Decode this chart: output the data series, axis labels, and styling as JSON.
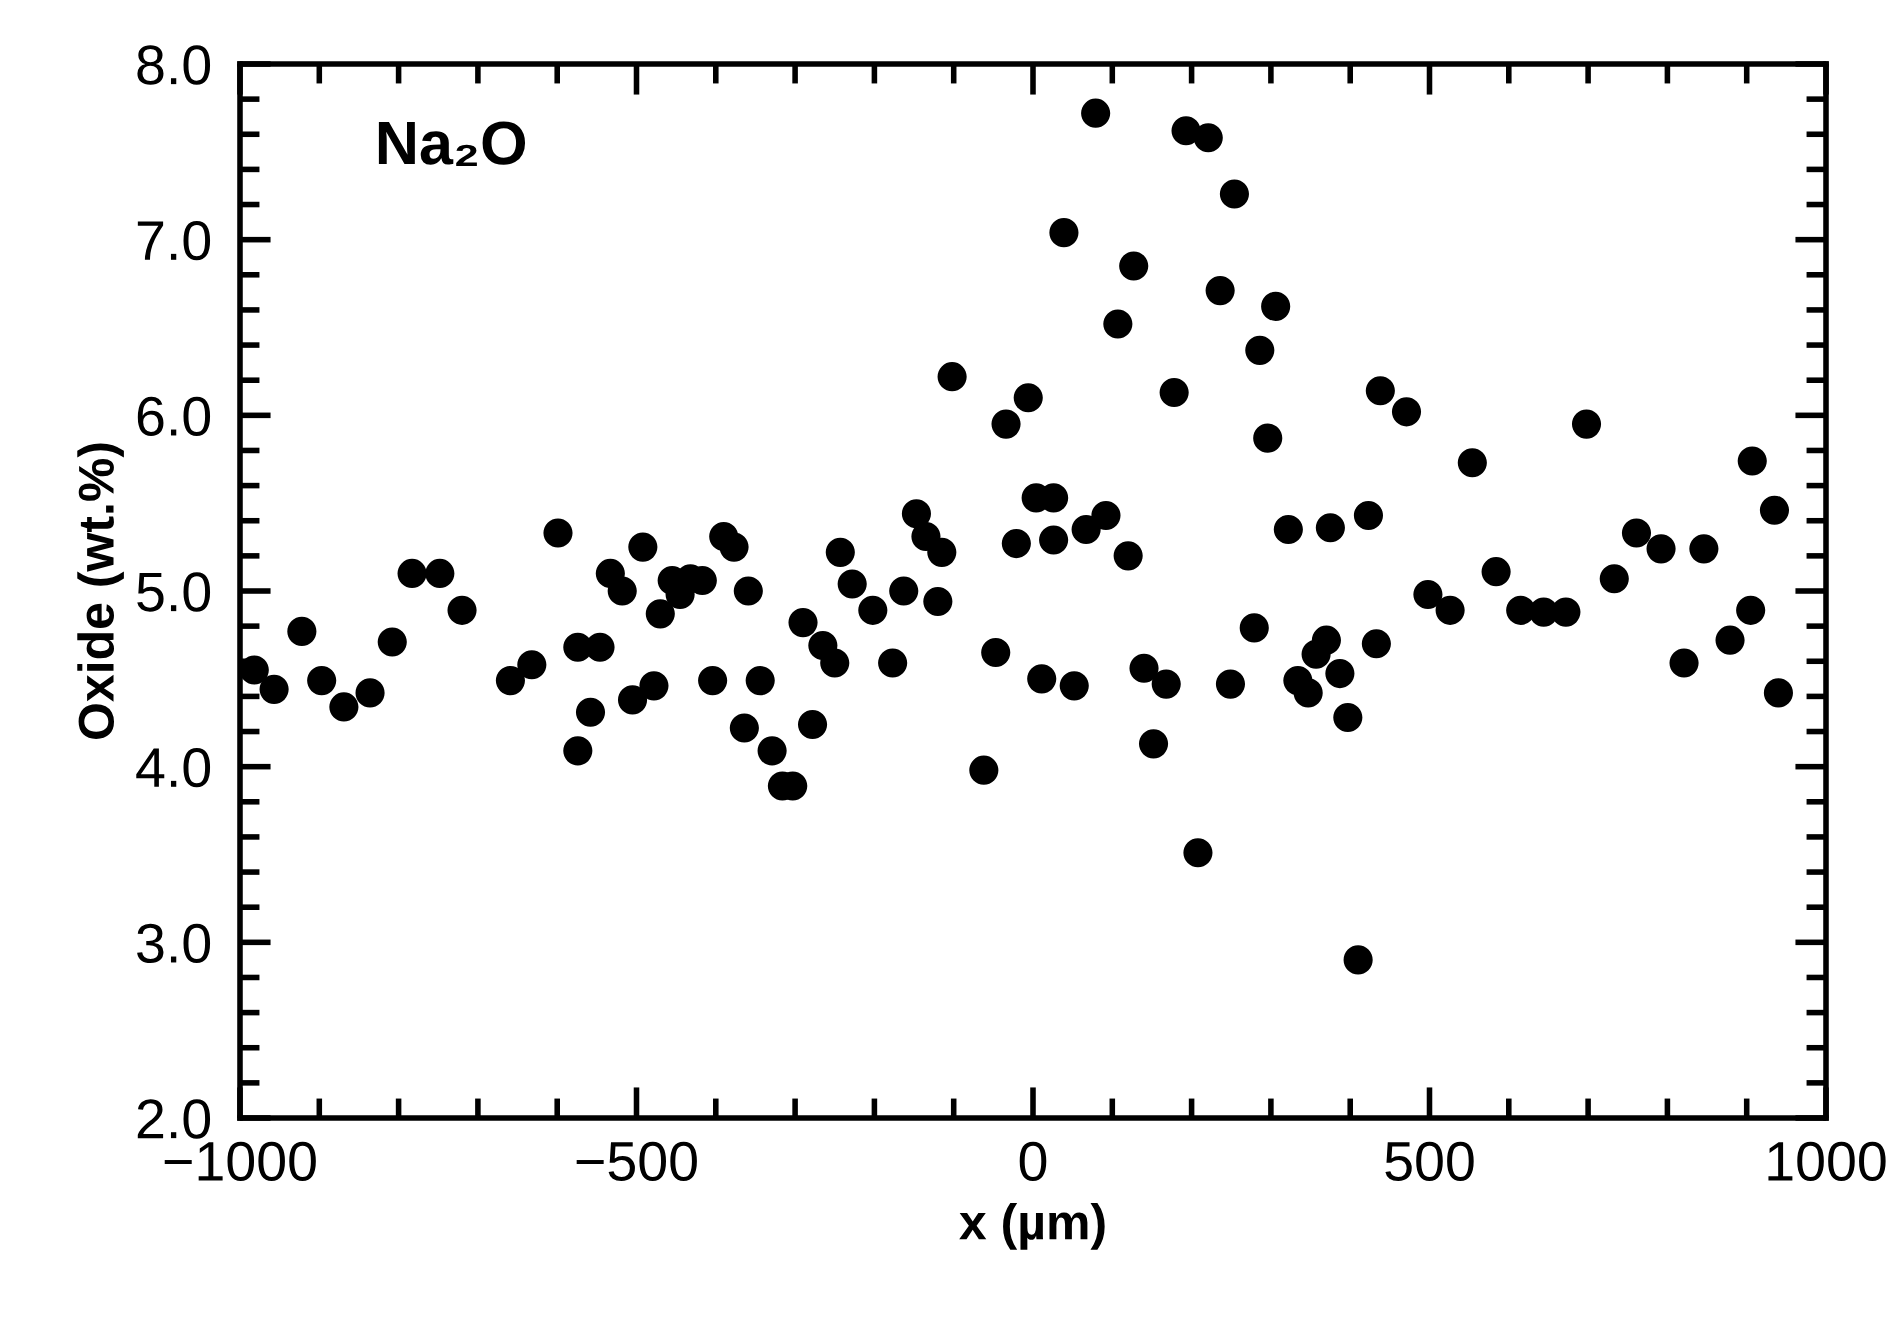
{
  "chart_data": {
    "type": "scatter",
    "xlabel": "x (µm)",
    "ylabel": "Oxide (wt.%)",
    "annotations": [
      "Na₂O"
    ],
    "marker": "circle",
    "grid": false,
    "xlim": [
      -1000,
      1000
    ],
    "ylim": [
      2.0,
      8.0
    ],
    "xticks": [
      {
        "value": -1000,
        "label": "−1000"
      },
      {
        "value": -500,
        "label": "−500"
      },
      0,
      500,
      1000
    ],
    "yticks": [
      {
        "value": 2,
        "label": "2.0"
      },
      {
        "value": 3,
        "label": "3.0"
      },
      {
        "value": 4,
        "label": "4.0"
      },
      {
        "value": 5,
        "label": "5.0"
      },
      {
        "value": 6,
        "label": "6.0"
      },
      {
        "value": 7,
        "label": "7.0"
      },
      {
        "value": 8,
        "label": "8.0"
      }
    ],
    "series": [
      {
        "color": "#000000",
        "x": [
          -982,
          -957,
          -922,
          -897,
          -869,
          -836,
          -808,
          -783,
          -748,
          -720,
          -659,
          -632,
          -599,
          -574,
          -574,
          -558,
          -546,
          -533,
          -518,
          -505,
          -492,
          -478,
          -470,
          -455,
          -445,
          -432,
          -417,
          -404,
          -390,
          -377,
          -359,
          -364,
          -344,
          -329,
          -316,
          -303,
          -290,
          -278,
          -265,
          -250,
          -243,
          -228,
          -202,
          -177,
          -163,
          -147,
          -135,
          -120,
          -115,
          -102,
          -62,
          -47,
          -34,
          -21,
          -6,
          4,
          11,
          26,
          26,
          39,
          52,
          67,
          79,
          92,
          107,
          120,
          127,
          140,
          152,
          168,
          178,
          193,
          208,
          221,
          236,
          249,
          254,
          279,
          286,
          296,
          306,
          322,
          334,
          347,
          357,
          370,
          375,
          387,
          397,
          410,
          423,
          433,
          438,
          471,
          498,
          526,
          554,
          584,
          615,
          644,
          672,
          698,
          733,
          761,
          792,
          821,
          846,
          879,
          905,
          907,
          935,
          940
        ],
        "values": [
          4.55,
          4.44,
          4.77,
          4.49,
          4.34,
          4.42,
          4.71,
          5.1,
          5.1,
          4.89,
          4.49,
          4.58,
          5.33,
          4.68,
          4.09,
          4.31,
          4.68,
          5.1,
          5.0,
          4.38,
          5.25,
          4.46,
          4.87,
          5.06,
          4.98,
          5.07,
          5.06,
          4.49,
          5.31,
          5.25,
          5.0,
          4.22,
          4.49,
          4.09,
          3.89,
          3.89,
          4.82,
          4.24,
          4.69,
          4.59,
          5.22,
          5.04,
          4.89,
          4.59,
          5.0,
          5.44,
          5.31,
          4.94,
          5.22,
          6.22,
          3.98,
          4.65,
          5.95,
          5.27,
          6.1,
          5.53,
          4.5,
          5.53,
          5.29,
          7.04,
          4.46,
          5.35,
          7.72,
          5.43,
          6.52,
          5.2,
          6.85,
          4.56,
          4.13,
          4.47,
          6.13,
          7.62,
          3.51,
          7.58,
          6.71,
          4.47,
          7.26,
          4.79,
          6.37,
          5.87,
          6.62,
          5.35,
          4.49,
          4.42,
          4.64,
          4.72,
          5.36,
          4.53,
          4.28,
          2.9,
          5.43,
          4.7,
          6.14,
          6.02,
          4.98,
          4.89,
          5.73,
          5.11,
          4.89,
          4.88,
          4.88,
          5.95,
          5.07,
          5.33,
          5.24,
          4.59,
          5.24,
          4.72,
          4.89,
          5.74,
          5.46,
          4.42
        ]
      }
    ]
  }
}
